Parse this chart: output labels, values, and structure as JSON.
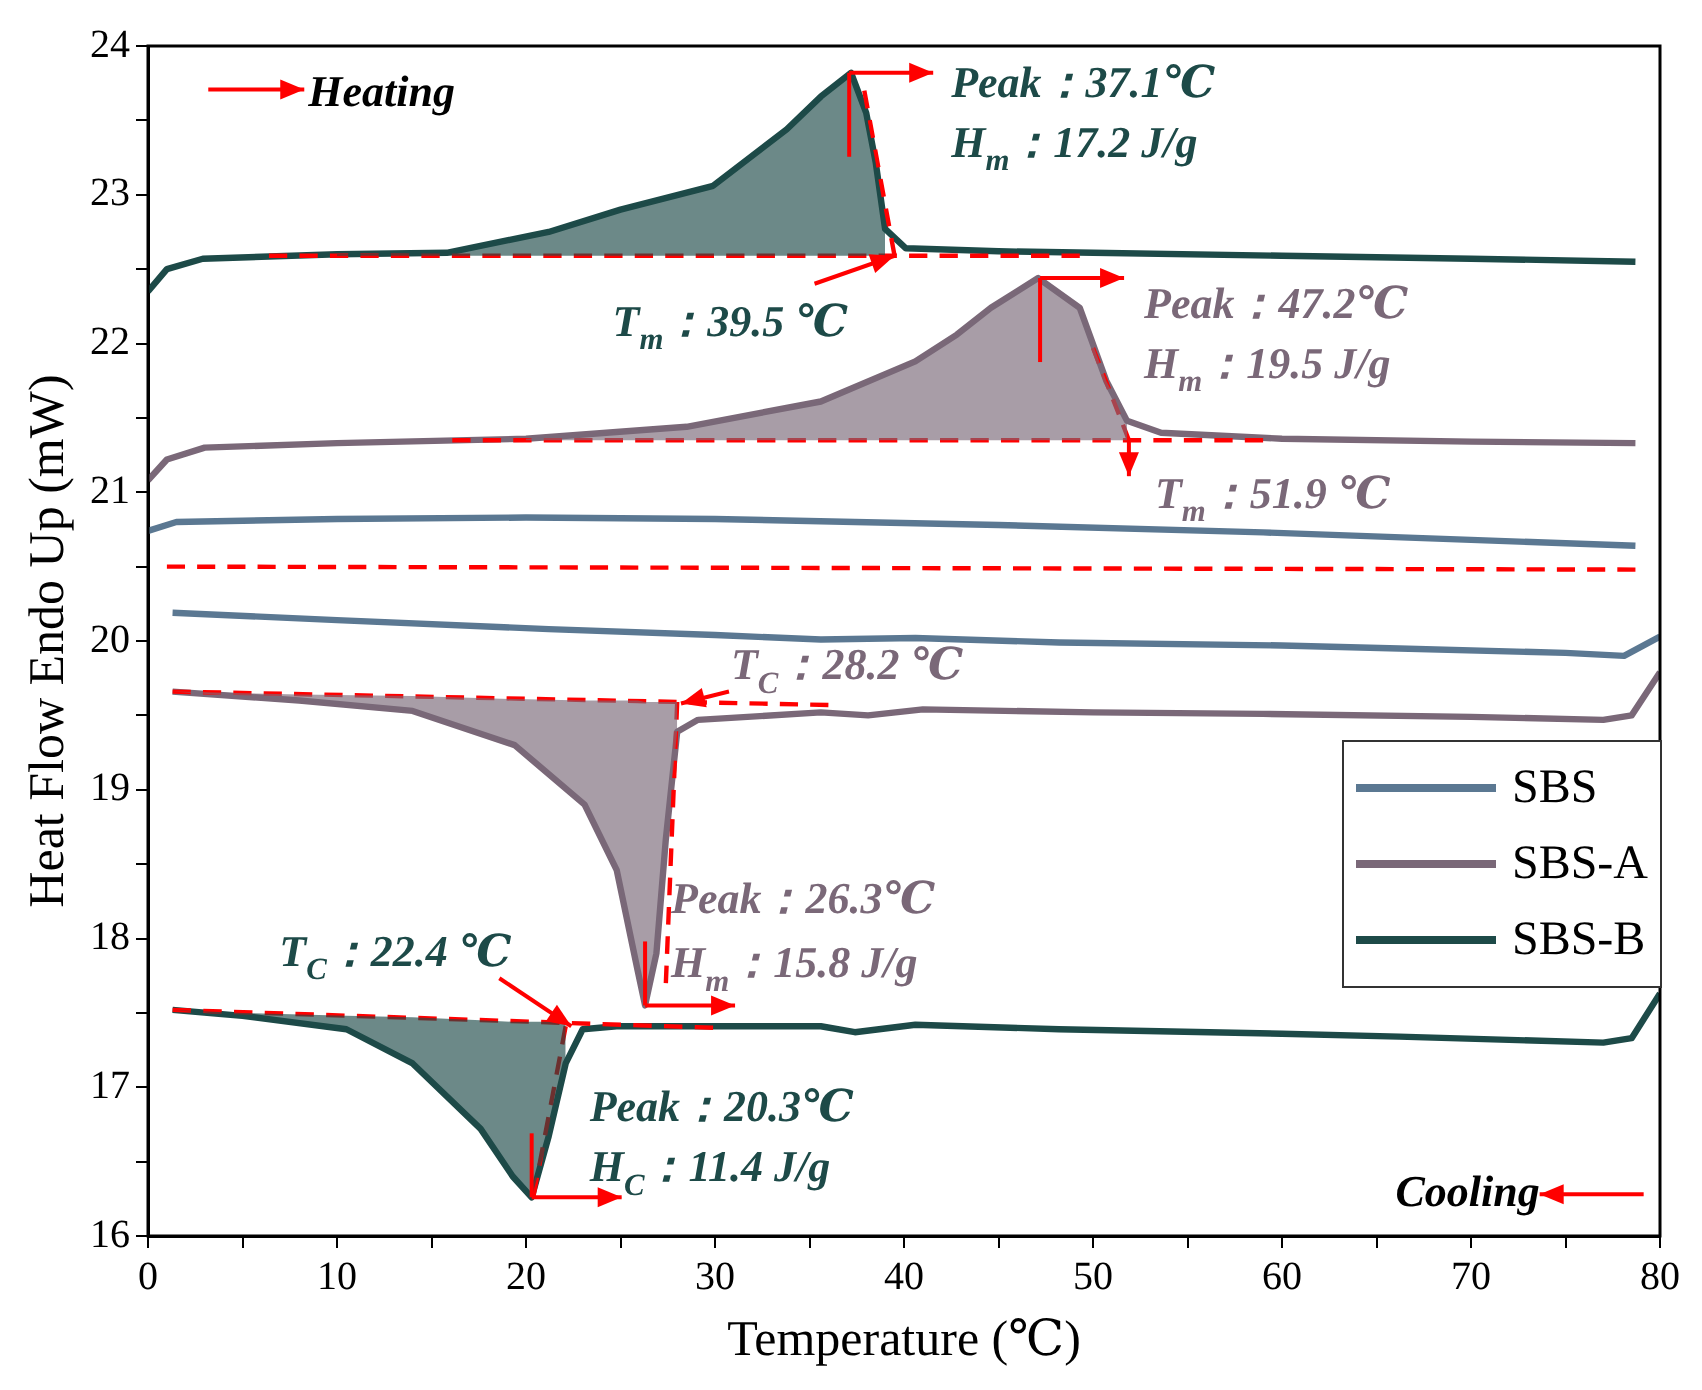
{
  "chart_data": {
    "type": "line",
    "xlabel": "Temperature (℃)",
    "ylabel": "Heat Flow Endo Up (mW)",
    "xlim": [
      0,
      80
    ],
    "xticks": [
      0,
      {
        "value": 5,
        "label": null
      },
      10,
      {
        "value": 15,
        "label": null
      },
      20,
      {
        "value": 25,
        "label": null
      },
      30,
      {
        "value": 35,
        "label": null
      },
      40,
      {
        "value": 45,
        "label": null
      },
      50,
      {
        "value": 55,
        "label": null
      },
      60,
      {
        "value": 65,
        "label": null
      },
      70,
      {
        "value": 75,
        "label": null
      },
      80
    ],
    "ylim": [
      16,
      24
    ],
    "yticks": [
      16,
      {
        "value": 16.5,
        "label": null
      },
      17,
      {
        "value": 17.5,
        "label": null
      },
      18,
      {
        "value": 18.5,
        "label": null
      },
      19,
      {
        "value": 19.5,
        "label": null
      },
      20,
      {
        "value": 20.5,
        "label": null
      },
      21,
      {
        "value": 21.5,
        "label": null
      },
      22,
      {
        "value": 22.5,
        "label": null
      },
      23,
      {
        "value": 23.5,
        "label": null
      },
      24
    ],
    "grid": false,
    "legend": "right",
    "marker": "none",
    "line_style": "solid",
    "series": [
      {
        "name": "SBS",
        "color": "#5b7892",
        "x": [
          0,
          1.5,
          10,
          20,
          30,
          37.4,
          45,
          59,
          70,
          78.7
        ],
        "values": [
          20.74,
          20.8,
          20.82,
          20.83,
          20.82,
          20.8,
          20.78,
          20.73,
          20.68,
          20.64
        ]
      },
      {
        "color": "#5b7892",
        "x": [
          1.3,
          10,
          21.2,
          30,
          35.6,
          40.6,
          48.2,
          60,
          66.2,
          75,
          78.1,
          80
        ],
        "values": [
          20.19,
          20.14,
          20.08,
          20.04,
          20.01,
          20.02,
          19.99,
          19.97,
          19.95,
          19.92,
          19.9,
          20.03
        ]
      },
      {
        "color": "#ff0000",
        "line_style": "dashed",
        "x": [
          1,
          78.7
        ],
        "values": [
          20.5,
          20.48
        ]
      },
      {
        "name": "SBS-A",
        "color": "#7a6878",
        "x": [
          0,
          1,
          3,
          10,
          20,
          28.5,
          35.6,
          40.6,
          42.8,
          44.6,
          47.1,
          49.3,
          50.7,
          51.8,
          53.6,
          60,
          70,
          78.7
        ],
        "values": [
          21.08,
          21.22,
          21.3,
          21.33,
          21.36,
          21.44,
          21.61,
          21.88,
          22.06,
          22.24,
          22.44,
          22.24,
          21.75,
          21.48,
          21.4,
          21.36,
          21.34,
          21.33
        ],
        "lower": [
          null,
          null,
          null,
          null,
          21.35,
          21.35,
          21.35,
          21.35,
          21.35,
          21.35,
          21.35,
          21.35,
          21.35,
          21.35,
          null,
          null,
          null,
          null
        ],
        "upper": [
          null,
          null,
          null,
          null,
          21.36,
          21.44,
          21.61,
          21.88,
          22.06,
          22.24,
          22.44,
          22.24,
          21.75,
          21.48,
          null,
          null,
          null,
          null
        ]
      },
      {
        "color": "#ff0000",
        "line_style": "dashed",
        "x": [
          16.1,
          59
        ],
        "values": [
          21.35,
          21.35
        ]
      },
      {
        "color": "#ff0000",
        "line_style": "dashed",
        "x": [
          50,
          51.9
        ],
        "values": [
          21.97,
          21.35
        ]
      },
      {
        "name": "SBS-B",
        "color": "#1d4a48",
        "x": [
          0,
          1,
          2.9,
          10,
          15.8,
          21.2,
          25,
          29.9,
          33.8,
          35.6,
          37.2,
          38,
          38.5,
          39,
          40.1,
          45,
          50,
          60,
          70,
          78.7
        ],
        "values": [
          22.35,
          22.5,
          22.57,
          22.6,
          22.61,
          22.75,
          22.9,
          23.06,
          23.44,
          23.66,
          23.82,
          23.55,
          23.22,
          22.77,
          22.64,
          22.62,
          22.61,
          22.59,
          22.57,
          22.55
        ],
        "lower": [
          null,
          null,
          null,
          22.59,
          22.59,
          22.59,
          22.59,
          22.59,
          22.59,
          22.59,
          22.59,
          22.59,
          22.59,
          22.59,
          null,
          null,
          null,
          null,
          null,
          null
        ],
        "upper": [
          null,
          null,
          null,
          22.6,
          22.61,
          22.75,
          22.9,
          23.06,
          23.44,
          23.66,
          23.82,
          23.55,
          23.22,
          22.77,
          null,
          null,
          null,
          null,
          null,
          null
        ]
      },
      {
        "color": "#ff0000",
        "line_style": "dashed",
        "x": [
          6.4,
          49.3
        ],
        "values": [
          22.59,
          22.59
        ]
      },
      {
        "color": "#ff0000",
        "line_style": "dashed",
        "x": [
          37.9,
          39.5
        ],
        "values": [
          23.7,
          22.59
        ]
      },
      {
        "color": "#7a6878",
        "x": [
          1.3,
          8,
          14,
          19.4,
          23.1,
          24.8,
          25.9,
          26.3,
          26.9,
          27.4,
          28,
          29.1,
          35.6,
          38.1,
          41,
          50,
          59,
          70,
          77,
          78.5,
          80
        ],
        "values": [
          19.66,
          19.6,
          19.53,
          19.3,
          18.9,
          18.46,
          17.79,
          17.55,
          17.9,
          18.67,
          19.39,
          19.47,
          19.52,
          19.5,
          19.54,
          19.52,
          19.51,
          19.49,
          19.47,
          19.5,
          19.79
        ],
        "lower": [
          19.66,
          19.64,
          19.63,
          19.61,
          19.6,
          19.6,
          19.6,
          19.59,
          19.59,
          19.59,
          19.59,
          null,
          null,
          null,
          null,
          null,
          null,
          null,
          null,
          null,
          null
        ],
        "upper": [
          19.66,
          19.6,
          19.53,
          19.3,
          18.9,
          18.46,
          17.79,
          17.55,
          17.9,
          18.67,
          19.39,
          null,
          null,
          null,
          null,
          null,
          null,
          null,
          null,
          null,
          null
        ]
      },
      {
        "color": "#ff0000",
        "line_style": "dashed",
        "x": [
          1.3,
          36
        ],
        "values": [
          19.66,
          19.57
        ]
      },
      {
        "color": "#ff0000",
        "line_style": "dashed",
        "x": [
          28,
          27.4
        ],
        "values": [
          19.59,
          17.7
        ]
      },
      {
        "color": "#1d4a48",
        "x": [
          1.3,
          5,
          10.5,
          14,
          17.6,
          19.3,
          20.3,
          21.2,
          22.1,
          23,
          24.8,
          30,
          35.6,
          37.4,
          40.6,
          48.2,
          60,
          66.2,
          77,
          78.5,
          80
        ],
        "values": [
          17.52,
          17.48,
          17.39,
          17.16,
          16.72,
          16.4,
          16.26,
          16.67,
          17.16,
          17.39,
          17.41,
          17.41,
          17.41,
          17.37,
          17.42,
          17.39,
          17.36,
          17.34,
          17.3,
          17.33,
          17.63
        ],
        "lower": [
          17.52,
          17.5,
          17.48,
          17.47,
          17.45,
          17.44,
          17.44,
          17.44,
          17.43,
          null,
          null,
          null,
          null,
          null,
          null,
          null,
          null,
          null,
          null,
          null,
          null
        ],
        "upper": [
          17.52,
          17.48,
          17.39,
          17.16,
          16.72,
          16.4,
          16.26,
          16.67,
          17.16,
          null,
          null,
          null,
          null,
          null,
          null,
          null,
          null,
          null,
          null,
          null,
          null
        ]
      },
      {
        "color": "#ff0000",
        "line_style": "dashed",
        "x": [
          1.3,
          29.9
        ],
        "values": [
          17.52,
          17.4
        ]
      },
      {
        "color": "#ff0000",
        "line_style": "dashed",
        "x": [
          22.1,
          20.4
        ],
        "values": [
          17.41,
          16.27
        ]
      }
    ],
    "annotations": [
      "Heating",
      {
        "text": "Peak：37.1℃",
        "x": 37.1,
        "y": 23.82
      },
      "H$_{m}$：17.2 J/g",
      {
        "text": "T$_{m}$：39.5 ℃",
        "x": 39.5,
        "y": 22.59
      },
      {
        "text": "Peak：47.2℃",
        "x": 47.2,
        "y": 22.44
      },
      "H$_{m}$：19.5 J/g",
      {
        "text": "T$_{m}$：51.9 ℃",
        "x": 51.9,
        "y": 21.35
      },
      {
        "text": "T$_{C}$：28.2 ℃",
        "x": 28.2,
        "y": 19.58
      },
      {
        "text": "Peak：26.3℃",
        "x": 26.3,
        "y": 17.55
      },
      "H$_{m}$：15.8 J/g",
      {
        "text": "T$_{C}$：22.4 ℃",
        "x": 22.4,
        "y": 17.41
      },
      {
        "text": "Peak：20.3℃",
        "x": 20.3,
        "y": 16.26
      },
      "H$_{C}$：11.4 J/g",
      "Cooling"
    ]
  }
}
